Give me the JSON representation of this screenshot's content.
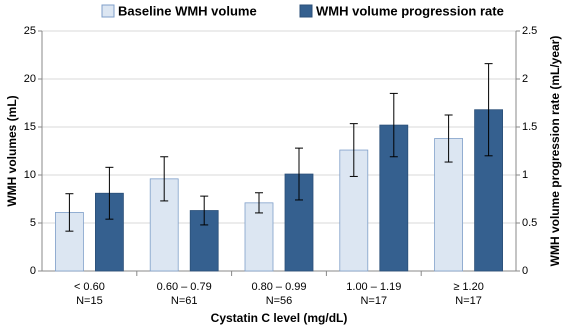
{
  "chart_data": {
    "type": "bar",
    "categories": [
      "< 0.60",
      "0.60 – 0.79",
      "0.80 – 0.99",
      "1.00 – 1.19",
      "≥ 1.20"
    ],
    "category_counts": [
      "N=15",
      "N=61",
      "N=56",
      "N=17",
      "N=17"
    ],
    "xlabel": "Cystatin C level (mg/dL)",
    "ylabel": "WMH volumes (mL)",
    "y2label": "WMH volume progression rate (mL/year)",
    "series": [
      {
        "name": "Baseline WMH volume",
        "color": "#dce6f2",
        "stroke": "#7f9fc9",
        "values": [
          6.1,
          9.6,
          7.1,
          12.6,
          13.8
        ],
        "errors": [
          1.95,
          2.3,
          1.05,
          2.75,
          2.45
        ]
      },
      {
        "name": "WMH volume progression rate",
        "color": "#35608f",
        "stroke": "#2b4f78",
        "axis": "y2",
        "values": [
          0.81,
          0.63,
          1.01,
          1.52,
          1.68
        ],
        "errors": [
          0.27,
          0.15,
          0.27,
          0.33,
          0.48
        ]
      }
    ],
    "ylim": [
      0,
      25
    ],
    "yticks": [
      0,
      5,
      10,
      15,
      20,
      25
    ],
    "y2lim": [
      0,
      2.5
    ],
    "y2ticks": [
      0,
      0.5,
      1,
      1.5,
      2,
      2.5
    ],
    "grid": true
  }
}
